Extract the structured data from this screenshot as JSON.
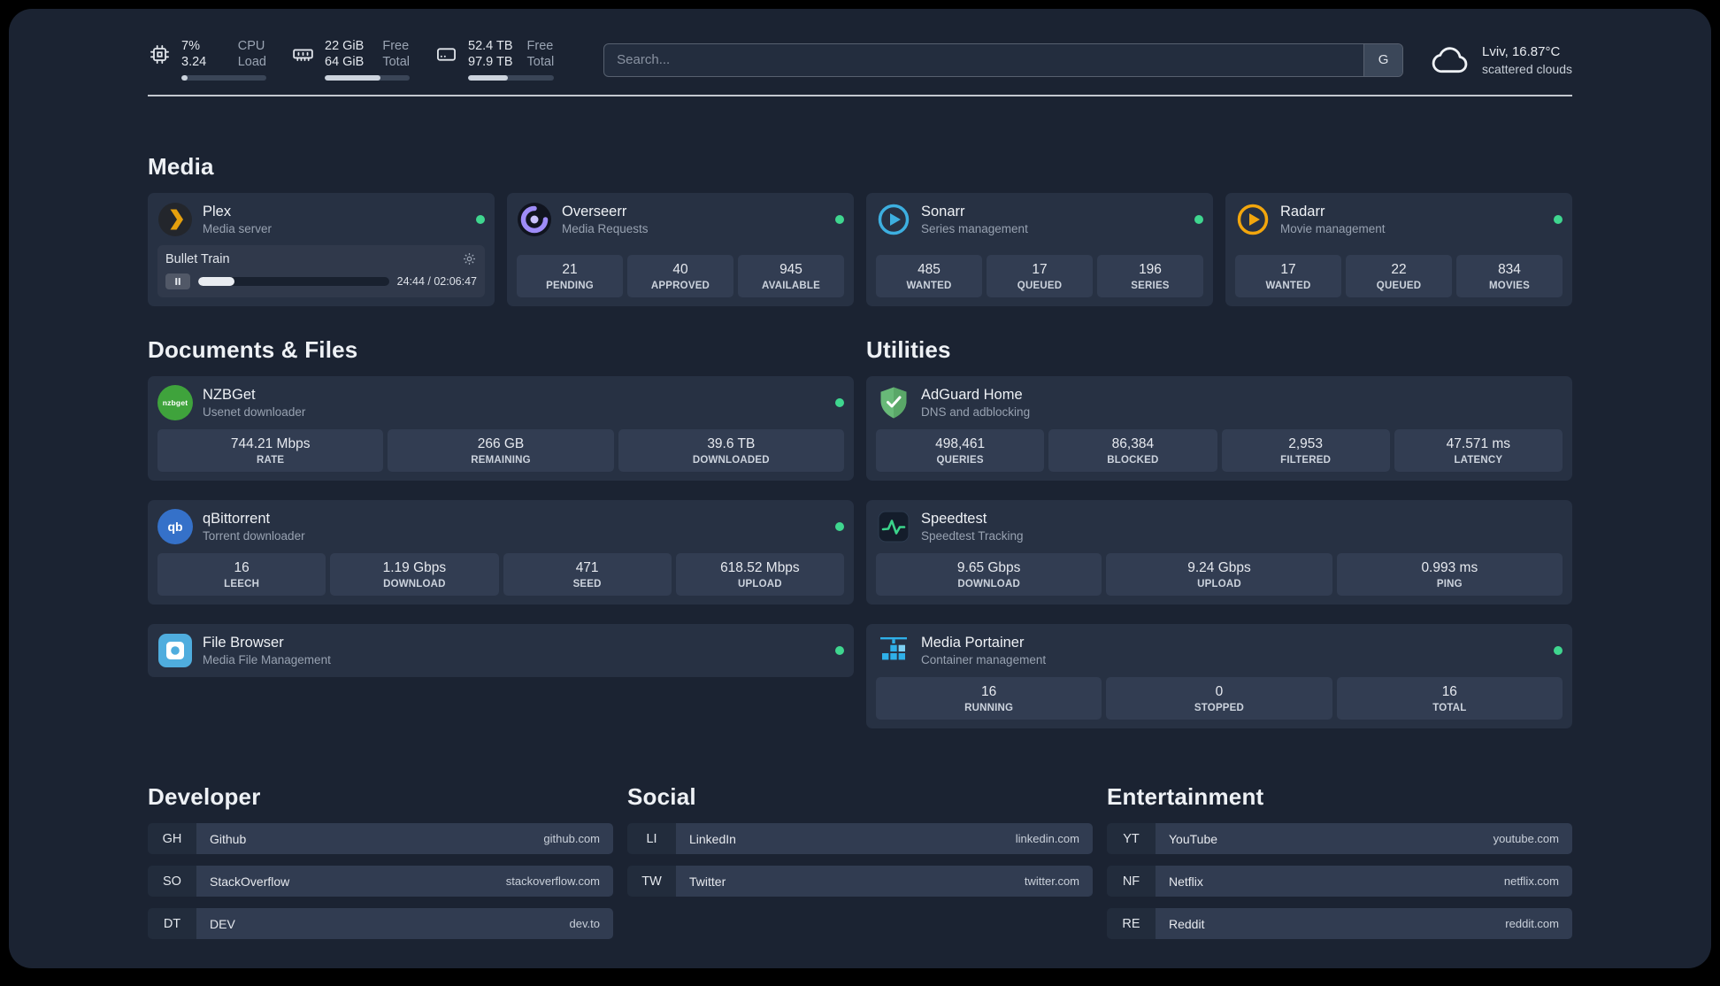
{
  "colors": {
    "status_online": "#3fd68f",
    "background": "#1b2332",
    "card": "#273143",
    "tile": "#323d52",
    "plex_gold": "#e5a00d",
    "sonarr_blue": "#3dafe0",
    "radarr_yellow": "#f2a60d",
    "adguard_green": "#68b978",
    "portainer_blue": "#2fb0e8"
  },
  "icons": {
    "cpu": "chip-icon",
    "memory": "ram-icon",
    "disk": "hard-drive-icon",
    "weather": "cloud-icon",
    "plex": "plex-chevron-icon",
    "overseerr": "swirl-icon",
    "sonarr": "play-ring-icon",
    "radarr": "play-ring-icon",
    "nzbget": "nzbget-circle-icon",
    "qbittorrent": "qb-circle-icon",
    "adguard": "shield-check-icon",
    "speedtest": "pulse-line-icon",
    "portainer": "container-crane-icon",
    "filebrowser": "file-square-icon",
    "plex_settings": "gear-icon",
    "plex_pause": "pause-icon"
  },
  "topbar": {
    "cpu": {
      "value_top": "7%",
      "value_bottom": "3.24",
      "label_top": "CPU",
      "label_bottom": "Load",
      "usage_percent": 7
    },
    "memory": {
      "value_top": "22 GiB",
      "value_bottom": "64 GiB",
      "label_top": "Free",
      "label_bottom": "Total",
      "usage_percent": 66
    },
    "disk": {
      "value_top": "52.4 TB",
      "value_bottom": "97.9 TB",
      "label_top": "Free",
      "label_bottom": "Total",
      "usage_percent": 46
    },
    "search": {
      "placeholder": "Search...",
      "button_label": "G"
    },
    "weather": {
      "location": "Lviv, 16.87°C",
      "condition": "scattered clouds"
    }
  },
  "sections": {
    "media": {
      "title": "Media",
      "plex": {
        "name": "Plex",
        "description": "Media server",
        "now_playing": {
          "title": "Bullet Train",
          "time": "24:44 / 02:06:47",
          "progress_percent": 19
        }
      },
      "overseerr": {
        "name": "Overseerr",
        "description": "Media Requests",
        "stats": [
          {
            "value": "21",
            "label": "PENDING"
          },
          {
            "value": "40",
            "label": "APPROVED"
          },
          {
            "value": "945",
            "label": "AVAILABLE"
          }
        ]
      },
      "sonarr": {
        "name": "Sonarr",
        "description": "Series management",
        "stats": [
          {
            "value": "485",
            "label": "WANTED"
          },
          {
            "value": "17",
            "label": "QUEUED"
          },
          {
            "value": "196",
            "label": "SERIES"
          }
        ]
      },
      "radarr": {
        "name": "Radarr",
        "description": "Movie management",
        "stats": [
          {
            "value": "17",
            "label": "WANTED"
          },
          {
            "value": "22",
            "label": "QUEUED"
          },
          {
            "value": "834",
            "label": "MOVIES"
          }
        ]
      }
    },
    "files": {
      "title": "Documents & Files",
      "nzbget": {
        "name": "NZBGet",
        "description": "Usenet downloader",
        "icon_text": "nzbget",
        "stats": [
          {
            "value": "744.21 Mbps",
            "label": "RATE"
          },
          {
            "value": "266 GB",
            "label": "REMAINING"
          },
          {
            "value": "39.6 TB",
            "label": "DOWNLOADED"
          }
        ]
      },
      "qbittorrent": {
        "name": "qBittorrent",
        "description": "Torrent downloader",
        "icon_text": "qb",
        "stats": [
          {
            "value": "16",
            "label": "LEECH"
          },
          {
            "value": "1.19 Gbps",
            "label": "DOWNLOAD"
          },
          {
            "value": "471",
            "label": "SEED"
          },
          {
            "value": "618.52 Mbps",
            "label": "UPLOAD"
          }
        ]
      },
      "filebrowser": {
        "name": "File Browser",
        "description": "Media File Management"
      }
    },
    "utilities": {
      "title": "Utilities",
      "adguard": {
        "name": "AdGuard Home",
        "description": "DNS and adblocking",
        "stats": [
          {
            "value": "498,461",
            "label": "QUERIES"
          },
          {
            "value": "86,384",
            "label": "BLOCKED"
          },
          {
            "value": "2,953",
            "label": "FILTERED"
          },
          {
            "value": "47.571 ms",
            "label": "LATENCY"
          }
        ]
      },
      "speedtest": {
        "name": "Speedtest",
        "description": "Speedtest Tracking",
        "stats": [
          {
            "value": "9.65 Gbps",
            "label": "DOWNLOAD"
          },
          {
            "value": "9.24 Gbps",
            "label": "UPLOAD"
          },
          {
            "value": "0.993 ms",
            "label": "PING"
          }
        ]
      },
      "portainer": {
        "name": "Media Portainer",
        "description": "Container management",
        "stats": [
          {
            "value": "16",
            "label": "RUNNING"
          },
          {
            "value": "0",
            "label": "STOPPED"
          },
          {
            "value": "16",
            "label": "TOTAL"
          }
        ]
      }
    }
  },
  "bookmarks": {
    "developer": {
      "title": "Developer",
      "items": [
        {
          "abbr": "GH",
          "name": "Github",
          "url": "github.com"
        },
        {
          "abbr": "SO",
          "name": "StackOverflow",
          "url": "stackoverflow.com"
        },
        {
          "abbr": "DT",
          "name": "DEV",
          "url": "dev.to"
        }
      ]
    },
    "social": {
      "title": "Social",
      "items": [
        {
          "abbr": "LI",
          "name": "LinkedIn",
          "url": "linkedin.com"
        },
        {
          "abbr": "TW",
          "name": "Twitter",
          "url": "twitter.com"
        }
      ]
    },
    "entertainment": {
      "title": "Entertainment",
      "items": [
        {
          "abbr": "YT",
          "name": "YouTube",
          "url": "youtube.com"
        },
        {
          "abbr": "NF",
          "name": "Netflix",
          "url": "netflix.com"
        },
        {
          "abbr": "RE",
          "name": "Reddit",
          "url": "reddit.com"
        }
      ]
    }
  }
}
